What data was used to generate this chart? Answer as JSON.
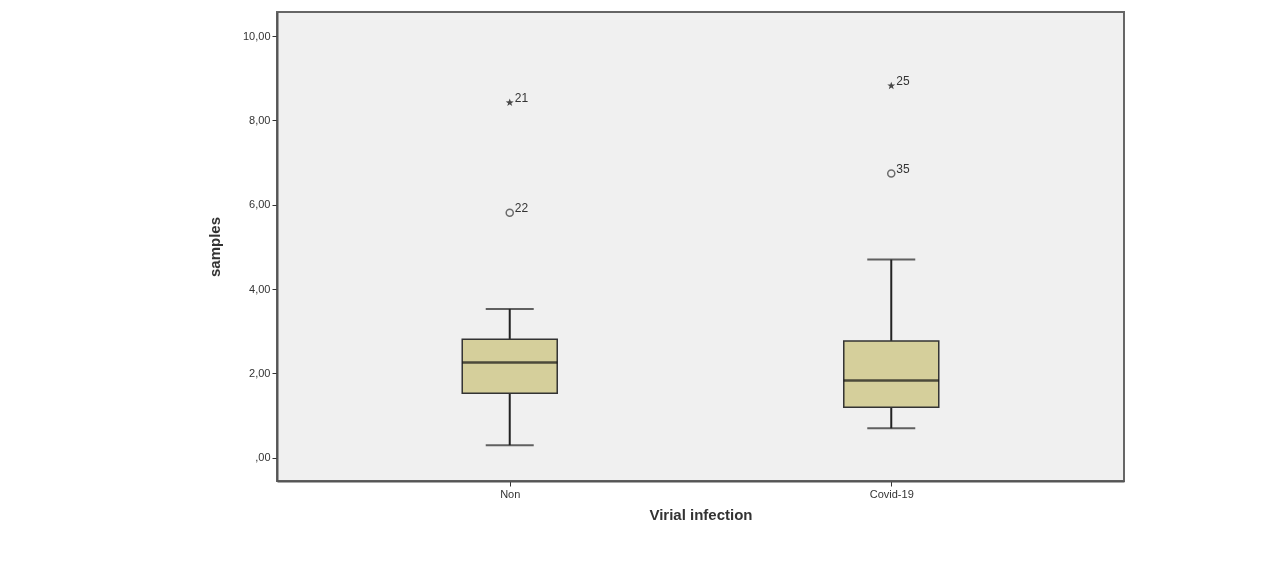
{
  "chart_data": {
    "type": "box",
    "xlabel": "Virial infection",
    "ylabel": "samples",
    "categories": [
      "Non",
      "Covid-19"
    ],
    "ylim": [
      -0.55,
      10.57
    ],
    "yticks": [
      {
        "value": 0,
        "label": ",00"
      },
      {
        "value": 2,
        "label": "2,00"
      },
      {
        "value": 4,
        "label": "4,00"
      },
      {
        "value": 6,
        "label": "6,00"
      },
      {
        "value": 8,
        "label": "8,00"
      },
      {
        "value": 10,
        "label": "10,00"
      }
    ],
    "series": [
      {
        "color": "#d5cf9b",
        "boxes": [
          {
            "low": 0.3,
            "q1": 1.53,
            "median": 2.26,
            "q3": 2.81,
            "high": 3.53
          },
          {
            "low": 0.7,
            "q1": 1.2,
            "median": 1.83,
            "q3": 2.77,
            "high": 4.7
          }
        ]
      },
      {
        "type": "scatter",
        "marker": "circle",
        "color": "#333333",
        "x": [
          "Non",
          "Covid-19"
        ],
        "values": [
          5.81,
          6.74
        ]
      },
      {
        "type": "scatter",
        "marker": "star",
        "color": "#000000",
        "x": [
          "Non",
          "Covid-19"
        ],
        "values": [
          8.42,
          8.82
        ]
      }
    ],
    "annotations": [
      {
        "text": "21",
        "x": "Non",
        "y": 8.42
      },
      {
        "text": "22",
        "x": "Non",
        "y": 5.81
      },
      {
        "text": "25",
        "x": "Covid-19",
        "y": 8.82
      },
      {
        "text": "35",
        "x": "Covid-19",
        "y": 6.74
      }
    ]
  }
}
